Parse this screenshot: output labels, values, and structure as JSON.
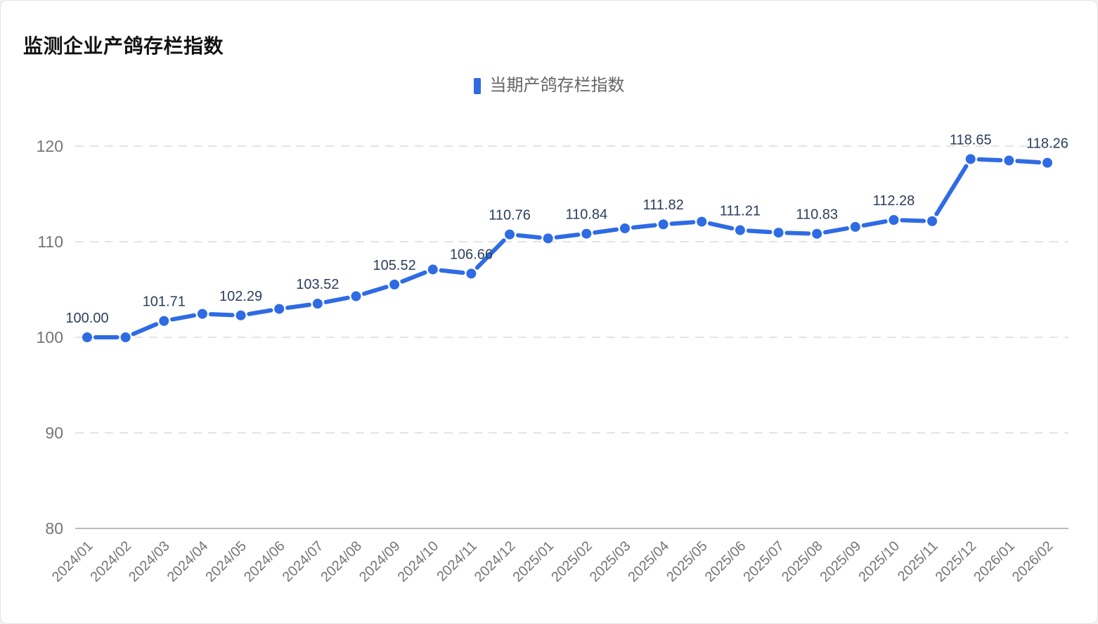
{
  "chart_data": {
    "type": "line",
    "title": "监测企业产鸽存栏指数",
    "legend": {
      "label": "当期产鸽存栏指数",
      "position": "top-center",
      "marker": "rect"
    },
    "categories": [
      "2024/01",
      "2024/02",
      "2024/03",
      "2024/04",
      "2024/05",
      "2024/06",
      "2024/07",
      "2024/08",
      "2024/09",
      "2024/10",
      "2024/11",
      "2024/12",
      "2025/01",
      "2025/02",
      "2025/03",
      "2025/04",
      "2025/05",
      "2025/06",
      "2025/07",
      "2025/08",
      "2025/09",
      "2025/10",
      "2025/11",
      "2025/12",
      "2026/01",
      "2026/02"
    ],
    "series": [
      {
        "name": "当期产鸽存栏指数",
        "values": [
          100.0,
          100.0,
          101.71,
          102.45,
          102.29,
          102.97,
          103.52,
          104.3,
          105.52,
          107.1,
          106.66,
          110.76,
          110.35,
          110.84,
          111.4,
          111.82,
          112.1,
          111.21,
          110.95,
          110.83,
          111.55,
          112.28,
          112.15,
          118.65,
          118.5,
          118.26
        ],
        "point_labels": [
          "100.00",
          null,
          "101.71",
          null,
          "102.29",
          null,
          "103.52",
          null,
          "105.52",
          null,
          "106.66",
          "110.76",
          null,
          "110.84",
          null,
          "111.82",
          null,
          "111.21",
          null,
          "110.83",
          null,
          "112.28",
          null,
          "118.65",
          null,
          "118.26"
        ],
        "line_style": "dashed",
        "point_style": "dot"
      }
    ],
    "ylim": [
      80,
      124
    ],
    "yticks": [
      80,
      90,
      100,
      110,
      120
    ],
    "grid": "horizontal-dashed",
    "x_label_rotation": 45,
    "colors": {
      "series": "#2E6BE4",
      "data_label": "#2C3E5D",
      "axis_label": "#757575",
      "legend_text": "#666666",
      "gridline": "#E4E4E4",
      "axis_line": "#BBBBBB",
      "title": "#121212",
      "background": "#FFFFFF",
      "card_border": "#E3E3E3"
    }
  }
}
